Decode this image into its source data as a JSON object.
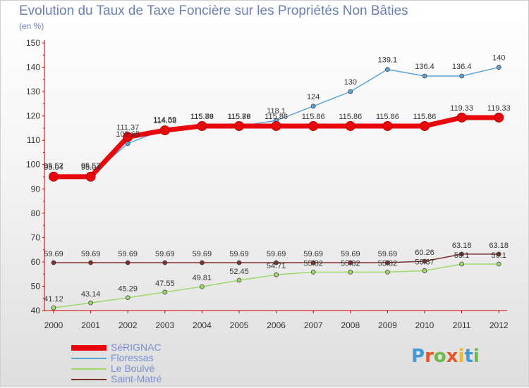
{
  "title": "Evolution du Taux de Taxe Foncière sur les Propriétés Non Bâties",
  "unit_label": "(en %)",
  "brand": {
    "letters": [
      "P",
      "r",
      "o",
      "x",
      "i",
      "t",
      "i"
    ],
    "colors": [
      "#3e9ad8",
      "#e6552a",
      "#6ab94a",
      "#e6552a",
      "#f0b52c",
      "#3e9ad8",
      "#6ab94a"
    ]
  },
  "chart_data": {
    "type": "line",
    "title": "Evolution du Taux de Taxe Foncière sur les Propriétés Non Bâties",
    "ylabel": "(en %)",
    "xlabel": "",
    "x": [
      "2000",
      "2001",
      "2002",
      "2003",
      "2004",
      "2005",
      "2006",
      "2007",
      "2008",
      "2009",
      "2010",
      "2011",
      "2012"
    ],
    "ylim": [
      40,
      150
    ],
    "yticks": [
      40,
      50,
      60,
      70,
      80,
      90,
      100,
      110,
      120,
      130,
      140,
      150
    ],
    "grid": false,
    "legend_position": "bottom-left",
    "series": [
      {
        "name": "SéRIGNAC",
        "color": "#e8070c",
        "width": 7,
        "values": [
          95.04,
          95.04,
          111.37,
          114.08,
          115.86,
          115.86,
          115.86,
          115.86,
          115.86,
          115.86,
          115.86,
          119.33,
          119.33
        ],
        "labels": [
          "95.04",
          "95.04",
          "111.37",
          "114.08",
          "115.86",
          "115.86",
          "115.86",
          "115.86",
          "115.86",
          "115.86",
          "115.86",
          "119.33",
          "119.33"
        ]
      },
      {
        "name": "Floressas",
        "color": "#5da5d8",
        "width": 1.5,
        "values": [
          95.52,
          95.52,
          108.65,
          114.59,
          115.79,
          115.79,
          118.1,
          124,
          130,
          139.1,
          136.4,
          136.4,
          140
        ],
        "labels": [
          "95.52",
          "95.52",
          "108.65",
          "114.59",
          "115.79",
          "115.79",
          "118.1",
          "124",
          "130",
          "139.1",
          "136.4",
          "136.4",
          "140"
        ]
      },
      {
        "name": "Le Boulvé",
        "color": "#9ed86b",
        "width": 1.5,
        "values": [
          41.12,
          43.14,
          45.29,
          47.55,
          49.81,
          52.45,
          54.71,
          55.82,
          55.82,
          55.82,
          56.37,
          59.1,
          59.1
        ],
        "labels": [
          "41.12",
          "43.14",
          "45.29",
          "47.55",
          "49.81",
          "52.45",
          "54.71",
          "55.82",
          "55.82",
          "55.82",
          "56.37",
          "59.1",
          "59.1"
        ]
      },
      {
        "name": "Saint-Matré",
        "color": "#7a2e2e",
        "width": 1.5,
        "values": [
          59.69,
          59.69,
          59.69,
          59.69,
          59.69,
          59.69,
          59.69,
          59.69,
          59.69,
          59.69,
          60.26,
          63.18,
          63.18
        ],
        "labels": [
          "59.69",
          "59.69",
          "59.69",
          "59.69",
          "59.69",
          "59.69",
          "59.69",
          "59.69",
          "59.69",
          "59.69",
          "60.26",
          "63.18",
          "63.18"
        ]
      }
    ]
  }
}
